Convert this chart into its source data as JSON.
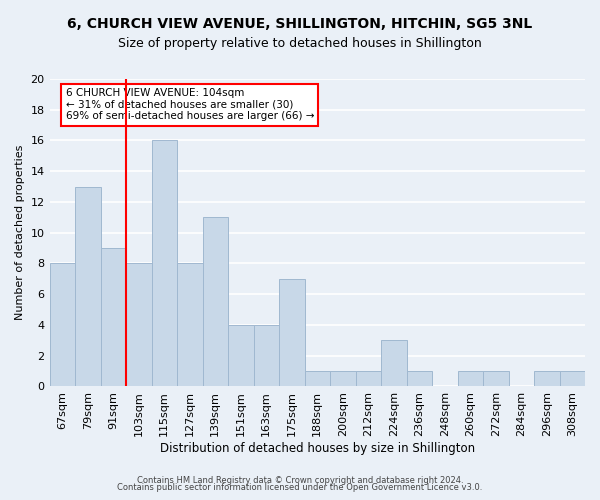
{
  "title": "6, CHURCH VIEW AVENUE, SHILLINGTON, HITCHIN, SG5 3NL",
  "subtitle": "Size of property relative to detached houses in Shillington",
  "xlabel": "Distribution of detached houses by size in Shillington",
  "ylabel": "Number of detached properties",
  "bins": [
    "67sqm",
    "79sqm",
    "91sqm",
    "103sqm",
    "115sqm",
    "127sqm",
    "139sqm",
    "151sqm",
    "163sqm",
    "175sqm",
    "188sqm",
    "200sqm",
    "212sqm",
    "224sqm",
    "236sqm",
    "248sqm",
    "260sqm",
    "272sqm",
    "284sqm",
    "296sqm",
    "308sqm"
  ],
  "values": [
    8,
    13,
    9,
    8,
    16,
    8,
    11,
    4,
    4,
    7,
    1,
    1,
    1,
    3,
    1,
    0,
    1,
    1,
    0,
    1,
    1
  ],
  "bar_color": "#c8d8e8",
  "bar_edge_color": "#a0b8d0",
  "red_line_x": 2.5,
  "ylim": [
    0,
    20
  ],
  "yticks": [
    0,
    2,
    4,
    6,
    8,
    10,
    12,
    14,
    16,
    18,
    20
  ],
  "annotation_text": "6 CHURCH VIEW AVENUE: 104sqm\n← 31% of detached houses are smaller (30)\n69% of semi-detached houses are larger (66) →",
  "footer1": "Contains HM Land Registry data © Crown copyright and database right 2024.",
  "footer2": "Contains public sector information licensed under the Open Government Licence v3.0.",
  "background_color": "#eaf0f7",
  "grid_color": "#d0dce8",
  "title_fontsize": 10,
  "subtitle_fontsize": 9
}
